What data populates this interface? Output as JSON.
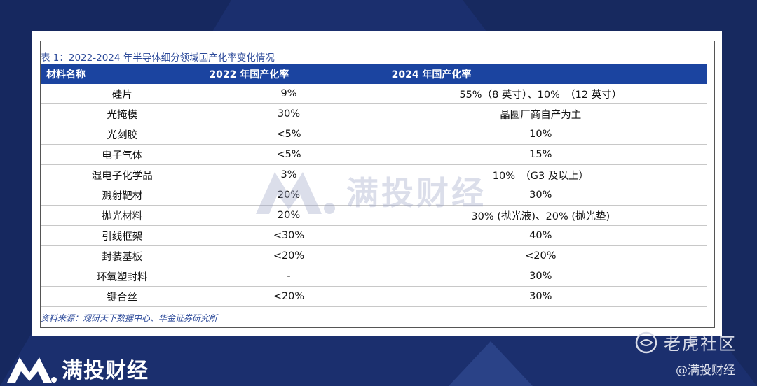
{
  "caption": "表 1：2022-2024 年半导体细分领域国产化率变化情况",
  "table": {
    "headers": [
      "材料名称",
      "2022 年国产化率",
      "2024 年国产化率"
    ],
    "rows": [
      [
        "硅片",
        "9%",
        "55%（8 英寸）、10%　（12 英寸）"
      ],
      [
        "光掩模",
        "30%",
        "晶圆厂商自产为主"
      ],
      [
        "光刻胶",
        "<5%",
        "10%"
      ],
      [
        "电子气体",
        "<5%",
        "15%"
      ],
      [
        "湿电子化学品",
        "3%",
        "10%　（G3 及以上）"
      ],
      [
        "溅射靶材",
        "20%",
        "30%"
      ],
      [
        "抛光材料",
        "20%",
        "30% (抛光液)、20% (抛光垫)"
      ],
      [
        "引线框架",
        "<30%",
        "40%"
      ],
      [
        "封装基板",
        "<20%",
        "<20%"
      ],
      [
        "环氧塑封料",
        "-",
        "30%"
      ],
      [
        "键合丝",
        "<20%",
        "30%"
      ]
    ]
  },
  "source": "资料来源：观研天下数据中心、华金证券研究所",
  "watermark_text": "满投财经",
  "brand_text": "满投财经",
  "community_text": "老虎社区",
  "handle": "@满投财经",
  "colors": {
    "header_bg": "#1b44a0",
    "page_bg": "#1b2f6e",
    "caption": "#2c4a9a"
  }
}
